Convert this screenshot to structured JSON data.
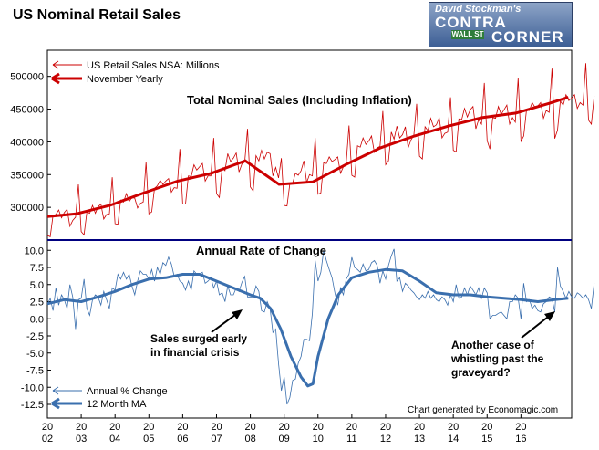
{
  "header": {
    "title": "US Nominal Retail Sales",
    "logo_line1": "David Stockman's",
    "logo_line2": "CONTRA",
    "logo_line3": "CORNER",
    "logo_sign": "WALL ST"
  },
  "colors": {
    "red": "#cc0000",
    "blue": "#3a6fae",
    "navy": "#000080"
  },
  "chart_data": [
    {
      "type": "line",
      "title": "Total Nominal Sales (Including Inflation)",
      "xlim": [
        2002.0,
        2017.5
      ],
      "ylim": [
        250000,
        540000
      ],
      "y_ticks": [
        300000,
        350000,
        400000,
        450000,
        500000
      ],
      "legend_position": "top-left",
      "series": [
        {
          "name": "US Retail Sales NSA: Millions",
          "style": "thin",
          "x_start": 2002.0,
          "step": 0.0833333,
          "values": [
            257000,
            255000,
            288000,
            289000,
            296000,
            284000,
            292000,
            297000,
            271000,
            280000,
            285000,
            335000,
            263000,
            258000,
            293000,
            291000,
            303000,
            291000,
            301000,
            305000,
            282000,
            289000,
            290000,
            346000,
            275000,
            274000,
            311000,
            308000,
            321000,
            309000,
            315000,
            314000,
            299000,
            306000,
            308000,
            369000,
            290000,
            293000,
            329000,
            333000,
            341000,
            335000,
            340000,
            344000,
            323000,
            330000,
            329000,
            389000,
            305000,
            305000,
            348000,
            347000,
            365000,
            357000,
            362000,
            367000,
            340000,
            348000,
            348000,
            406000,
            321000,
            315000,
            361000,
            356000,
            382000,
            370000,
            375000,
            383000,
            354000,
            366000,
            369000,
            420000,
            331000,
            325000,
            379000,
            371000,
            387000,
            374000,
            384000,
            382000,
            348000,
            361000,
            345000,
            375000,
            303000,
            302000,
            336000,
            337000,
            352000,
            349000,
            356000,
            371000,
            338000,
            350000,
            348000,
            406000,
            320000,
            322000,
            368000,
            367000,
            377000,
            370000,
            373000,
            377000,
            352000,
            362000,
            368000,
            425000,
            349000,
            346000,
            394000,
            392000,
            406000,
            396000,
            401000,
            409000,
            384000,
            391000,
            393000,
            447000,
            365000,
            371000,
            415000,
            404000,
            424000,
            406000,
            411000,
            423000,
            391000,
            403000,
            410000,
            458000,
            378000,
            374000,
            423000,
            417000,
            436000,
            423000,
            426000,
            437000,
            406000,
            413000,
            415000,
            468000,
            387000,
            385000,
            435000,
            434000,
            451000,
            438000,
            449000,
            454000,
            420000,
            434000,
            427000,
            490000,
            402000,
            389000,
            437000,
            436000,
            454000,
            442000,
            449000,
            456000,
            427000,
            437000,
            430000,
            497000,
            401000,
            409000,
            449000,
            448000,
            460000,
            453000,
            455000,
            460000,
            436000,
            448000,
            445000,
            512000,
            405000,
            418000,
            462000,
            456000,
            472000,
            463000,
            467000,
            472000,
            451000,
            460000,
            456000,
            520000,
            433000,
            427000,
            470000
          ]
        },
        {
          "name": "November Yearly",
          "style": "thick",
          "x": [
            2002.0,
            2002.85,
            2003.85,
            2004.85,
            2005.85,
            2006.85,
            2007.85,
            2008.85,
            2009.85,
            2010.85,
            2011.85,
            2012.85,
            2013.85,
            2014.85,
            2015.85,
            2016.85,
            2017.4
          ],
          "values": [
            286000,
            290000,
            303000,
            322000,
            340000,
            352000,
            371000,
            335000,
            339000,
            366000,
            391000,
            409000,
            424000,
            437000,
            444000,
            459000,
            468000
          ]
        }
      ]
    },
    {
      "type": "line",
      "title": "Annual Rate of Change",
      "xlim": [
        2002.0,
        2017.5
      ],
      "ylim": [
        -14.5,
        11.5
      ],
      "y_ticks": [
        10.0,
        7.5,
        5.0,
        2.5,
        0.0,
        -2.5,
        -5.0,
        -7.5,
        -10.0,
        -12.5
      ],
      "x_tick_labels": [
        [
          "20",
          "02"
        ],
        [
          "20",
          "03"
        ],
        [
          "20",
          "04"
        ],
        [
          "20",
          "05"
        ],
        [
          "20",
          "06"
        ],
        [
          "20",
          "07"
        ],
        [
          "20",
          "08"
        ],
        [
          "20",
          "09"
        ],
        [
          "20",
          "10"
        ],
        [
          "20",
          "11"
        ],
        [
          "20",
          "12"
        ],
        [
          "20",
          "13"
        ],
        [
          "20",
          "14"
        ],
        [
          "20",
          "15"
        ],
        [
          "20",
          "16"
        ]
      ],
      "x_tick_values": [
        2002,
        2003,
        2004,
        2005,
        2006,
        2007,
        2008,
        2009,
        2010,
        2011,
        2012,
        2013,
        2014,
        2015,
        2016
      ],
      "legend_position": "bottom-left",
      "credit": "Chart generated by Economagic.com",
      "series": [
        {
          "name": "Annual % Change",
          "style": "thin",
          "x_start": 2002.0,
          "step": 0.0833333,
          "values": [
            2.1,
            3.0,
            1.2,
            4.5,
            2.0,
            3.5,
            2.8,
            1.5,
            5.0,
            3.2,
            -1.5,
            2.8,
            3.0,
            5.8,
            1.5,
            0.5,
            2.8,
            3.5,
            3.2,
            2.0,
            4.0,
            2.8,
            1.5,
            4.5,
            4.2,
            6.5,
            5.8,
            6.8,
            5.8,
            6.5,
            4.8,
            3.5,
            5.5,
            7.0,
            6.5,
            6.5,
            5.8,
            7.2,
            5.5,
            7.5,
            6.5,
            8.2,
            7.8,
            9.0,
            8.0,
            6.2,
            6.5,
            5.5,
            5.2,
            4.2,
            5.5,
            4.2,
            7.0,
            6.5,
            6.5,
            6.8,
            5.2,
            5.5,
            6.0,
            4.5,
            5.5,
            3.5,
            3.8,
            2.5,
            4.8,
            3.5,
            3.5,
            4.5,
            4.0,
            5.3,
            6.2,
            3.2,
            3.2,
            3.2,
            4.8,
            4.0,
            1.2,
            1.0,
            2.5,
            1.5,
            -2.0,
            -1.5,
            -6.5,
            -10.5,
            -8.5,
            -12.5,
            -11.5,
            -9.0,
            -8.8,
            -6.5,
            -5.5,
            -3.0,
            -3.0,
            -3.2,
            0.8,
            8.5,
            5.5,
            6.8,
            10.0,
            8.5,
            7.2,
            6.0,
            3.8,
            2.0,
            4.5,
            3.5,
            5.8,
            6.5,
            9.0,
            7.5,
            7.2,
            6.8,
            8.0,
            7.0,
            7.2,
            8.2,
            8.5,
            7.8,
            5.2,
            7.0,
            5.8,
            7.8,
            9.2,
            10.2,
            5.5,
            6.0,
            4.0,
            5.2,
            4.8,
            4.2,
            3.8,
            3.2,
            2.8,
            3.5,
            3.0,
            4.0,
            3.0,
            3.5,
            2.8,
            2.5,
            3.2,
            2.8,
            2.0,
            3.5,
            2.5,
            5.0,
            3.0,
            3.2,
            4.5,
            3.5,
            4.8,
            4.2,
            3.5,
            4.5,
            3.0,
            4.5,
            3.8,
            0.0,
            0.5,
            0.5,
            0.8,
            1.0,
            0.5,
            0.0,
            2.5,
            2.5,
            3.5,
            3.0,
            0.0,
            5.2,
            2.5,
            2.8,
            1.5,
            2.0,
            1.2,
            1.0,
            2.2,
            2.5,
            3.2,
            3.0,
            1.0,
            7.5,
            4.8,
            4.0,
            3.0,
            4.0,
            3.2,
            3.0,
            3.8,
            3.5,
            3.0,
            3.5,
            2.8,
            1.5,
            5.2
          ]
        },
        {
          "name": "12 Month MA",
          "style": "thick",
          "x": [
            2002.0,
            2002.5,
            2003.0,
            2003.5,
            2004.0,
            2004.5,
            2005.0,
            2005.5,
            2006.0,
            2006.5,
            2007.0,
            2007.5,
            2008.0,
            2008.3,
            2008.6,
            2008.9,
            2009.2,
            2009.5,
            2009.7,
            2009.85,
            2010.0,
            2010.3,
            2010.6,
            2011.0,
            2011.5,
            2012.0,
            2012.5,
            2013.0,
            2013.5,
            2014.0,
            2014.5,
            2015.0,
            2015.5,
            2016.0,
            2016.5,
            2017.0,
            2017.4
          ],
          "values": [
            2.2,
            2.8,
            2.5,
            3.2,
            4.0,
            5.0,
            5.8,
            6.0,
            6.5,
            6.5,
            5.5,
            4.5,
            3.5,
            3.0,
            1.5,
            -1.5,
            -5.5,
            -8.5,
            -9.8,
            -9.5,
            -5.5,
            0.0,
            3.5,
            6.0,
            6.8,
            7.2,
            7.0,
            5.5,
            3.8,
            3.5,
            3.5,
            3.2,
            3.0,
            2.8,
            2.5,
            2.8,
            3.0
          ]
        }
      ],
      "annotations": [
        {
          "lines": [
            "Sales surged early",
            "in financial crisis"
          ]
        },
        {
          "lines": [
            "Another case of",
            "whistling past the",
            "graveyard?"
          ]
        }
      ]
    }
  ]
}
